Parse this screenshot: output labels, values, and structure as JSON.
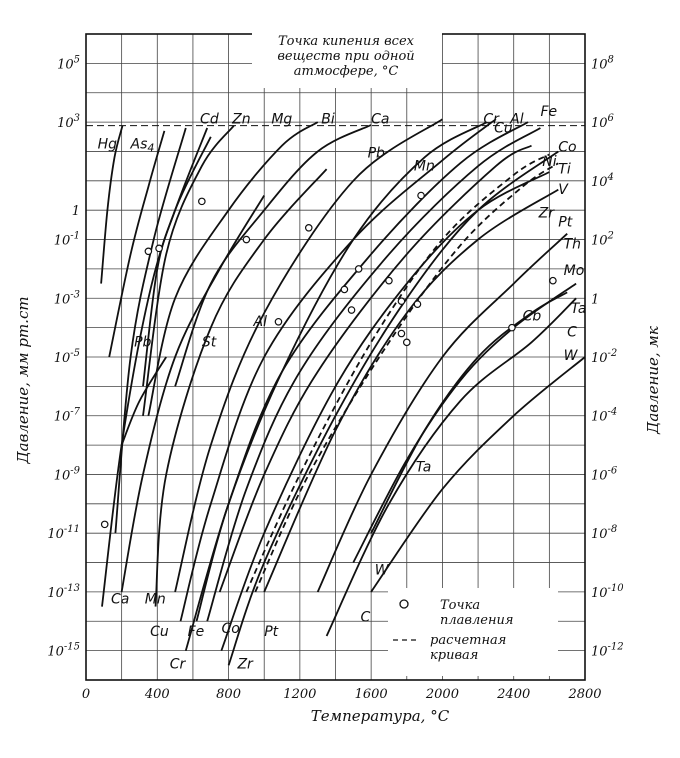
{
  "chart_data": {
    "type": "line",
    "xlabel": "Температура, °C",
    "ylabel_left": "Давление, мм рт.ст",
    "ylabel_right": "Давление, мк",
    "xlim": [
      0,
      2800
    ],
    "ylim_log10": [
      -16,
      6
    ],
    "xticks": [
      "0",
      "400",
      "800",
      "1200",
      "1600",
      "2000",
      "2400",
      "2800"
    ],
    "xtick_values": [
      0,
      400,
      800,
      1200,
      1600,
      2000,
      2400,
      2800
    ],
    "yticks_left": [
      {
        "exp": 5,
        "text": "10^5"
      },
      {
        "exp": 3,
        "text": "10^3"
      },
      {
        "exp": 0,
        "text": "1"
      },
      {
        "exp": -1,
        "text": "10^-1"
      },
      {
        "exp": -3,
        "text": "10^-3"
      },
      {
        "exp": -5,
        "text": "10^-5"
      },
      {
        "exp": -7,
        "text": "10^-7"
      },
      {
        "exp": -9,
        "text": "10^-9"
      },
      {
        "exp": -11,
        "text": "10^-11"
      },
      {
        "exp": -13,
        "text": "10^-13"
      },
      {
        "exp": -15,
        "text": "10^-15"
      }
    ],
    "yticks_right": [
      {
        "exp": 5,
        "text": "10^8"
      },
      {
        "exp": 3,
        "text": "10^6"
      },
      {
        "exp": 1,
        "text": "10^4"
      },
      {
        "exp": -1,
        "text": "10^2"
      },
      {
        "exp": -3,
        "text": "1"
      },
      {
        "exp": -5,
        "text": "10^-2"
      },
      {
        "exp": -7,
        "text": "10^-4"
      },
      {
        "exp": -9,
        "text": "10^-6"
      },
      {
        "exp": -11,
        "text": "10^-8"
      },
      {
        "exp": -13,
        "text": "10^-10"
      },
      {
        "exp": -15,
        "text": "10^-12"
      }
    ],
    "grid": true,
    "boiling_note": "Точка кипения всех веществ при одной атмосфере, °C",
    "boiling_line_log10": 2.88,
    "legend": [
      {
        "symbol": "circle",
        "label": "Точка плавления"
      },
      {
        "symbol": "dashed",
        "label": "расчетная кривая"
      }
    ],
    "series": [
      {
        "name": "Hg",
        "dashed": false,
        "x": [
          85,
          120,
          160,
          205
        ],
        "y": [
          -2.5,
          0,
          1.8,
          2.88
        ]
      },
      {
        "name": "As4",
        "dashed": false,
        "x": [
          130,
          250,
          350,
          440
        ],
        "y": [
          -5,
          -1.5,
          0.8,
          2.7
        ]
      },
      {
        "name": "Ca",
        "dashed": false,
        "x": [
          90,
          200,
          350,
          500,
          700
        ],
        "y": [
          -13.5,
          -8,
          -3,
          0,
          2.5
        ]
      },
      {
        "name": "Cd",
        "dashed": false,
        "x": [
          165,
          250,
          380,
          560
        ],
        "y": [
          -11,
          -5,
          -1,
          2.8
        ]
      },
      {
        "name": "Pb",
        "dashed": false,
        "x": [
          200,
          320,
          500,
          750,
          1000
        ],
        "y": [
          -13,
          -9,
          -5,
          -2,
          0.5
        ]
      },
      {
        "name": "St",
        "dashed": false,
        "x": [
          200,
          300,
          450
        ],
        "y": [
          -8,
          -6.5,
          -5
        ]
      },
      {
        "name": "Zn",
        "dashed": false,
        "x": [
          320,
          400,
          500,
          680
        ],
        "y": [
          -6,
          -2,
          0,
          2.8
        ]
      },
      {
        "name": "Mn",
        "dashed": false,
        "x": [
          390,
          450,
          700,
          1000,
          1350
        ],
        "y": [
          -13.5,
          -9,
          -4,
          -1,
          1.4
        ]
      },
      {
        "name": "Mg",
        "dashed": false,
        "x": [
          320,
          450,
          650,
          830
        ],
        "y": [
          -7,
          -1.5,
          1.5,
          2.88
        ]
      },
      {
        "name": "Cu",
        "dashed": false,
        "x": [
          530,
          700,
          1000,
          1500,
          2000,
          2300
        ],
        "y": [
          -14,
          -10,
          -5,
          -1,
          1.7,
          3.1
        ]
      },
      {
        "name": "Al",
        "dashed": false,
        "x": [
          500,
          700,
          1000,
          1500,
          2000
        ],
        "y": [
          -13,
          -8,
          -3.5,
          1,
          3.1
        ]
      },
      {
        "name": "Bi",
        "dashed": false,
        "x": [
          350,
          500,
          800,
          1100,
          1300
        ],
        "y": [
          -7,
          -3,
          0,
          2.2,
          3
        ]
      },
      {
        "name": "Ca",
        "dashed": false,
        "x": [
          500,
          700,
          1000,
          1300,
          1600
        ],
        "y": [
          -6,
          -2.5,
          0,
          2,
          2.9
        ]
      },
      {
        "name": "Fe",
        "dashed": false,
        "x": [
          620,
          800,
          1100,
          1600,
          2100,
          2480
        ],
        "y": [
          -14,
          -10,
          -5.5,
          -1.5,
          1.6,
          3
        ]
      },
      {
        "name": "Co",
        "dashed": false,
        "x": [
          680,
          900,
          1200,
          1700,
          2200,
          2550
        ],
        "y": [
          -14,
          -9.5,
          -5.5,
          -1.5,
          1.5,
          2.8
        ]
      },
      {
        "name": "Cr",
        "dashed": false,
        "x": [
          560,
          800,
          1100,
          1500,
          1900,
          2250
        ],
        "y": [
          -15,
          -10,
          -5.5,
          -1,
          1.8,
          3
        ]
      },
      {
        "name": "Ni",
        "dashed": false,
        "x": [
          750,
          1000,
          1300,
          1800,
          2300,
          2500
        ],
        "y": [
          -13,
          -9,
          -5.5,
          -1.5,
          1.5,
          2.2
        ]
      },
      {
        "name": "Pt",
        "dashed": false,
        "x": [
          760,
          1000,
          1400,
          1800,
          2200,
          2600
        ],
        "y": [
          -15,
          -11,
          -6,
          -2.5,
          0,
          1.3
        ]
      },
      {
        "name": "Zr",
        "dashed": false,
        "x": [
          800,
          1000,
          1400,
          1800,
          2200,
          2650
        ],
        "y": [
          -15.5,
          -12,
          -7,
          -3,
          0,
          2
        ]
      },
      {
        "name": "Ti",
        "dashed": true,
        "x": [
          900,
          1200,
          1600,
          2000,
          2400,
          2600
        ],
        "y": [
          -13,
          -9,
          -4.5,
          -1,
          1.2,
          1.9
        ]
      },
      {
        "name": "V",
        "dashed": true,
        "x": [
          950,
          1250,
          1700,
          2100,
          2450,
          2650
        ],
        "y": [
          -13,
          -9,
          -4.5,
          -1.2,
          0.8,
          1.6
        ]
      },
      {
        "name": "Th",
        "dashed": false,
        "x": [
          1000,
          1400,
          1800,
          2200,
          2650
        ],
        "y": [
          -13,
          -7.5,
          -3.5,
          -1,
          0.7
        ]
      },
      {
        "name": "Mo",
        "dashed": false,
        "x": [
          1300,
          1600,
          2000,
          2400,
          2700
        ],
        "y": [
          -13,
          -9,
          -5,
          -2.5,
          -0.8
        ]
      },
      {
        "name": "C",
        "dashed": false,
        "x": [
          1350,
          1700,
          2100,
          2500,
          2750
        ],
        "y": [
          -14.5,
          -10,
          -6.5,
          -4.5,
          -3
        ]
      },
      {
        "name": "Ta",
        "dashed": false,
        "x": [
          1500,
          1800,
          2100,
          2400,
          2750
        ],
        "y": [
          -12,
          -8.5,
          -5.8,
          -4,
          -2.5
        ]
      },
      {
        "name": "Cb",
        "dashed": false,
        "x": [
          1600,
          1900,
          2200,
          2500,
          2700
        ],
        "y": [
          -11,
          -7.5,
          -5,
          -3.5,
          -2.8
        ]
      },
      {
        "name": "W",
        "dashed": false,
        "x": [
          1600,
          2000,
          2400,
          2800
        ],
        "y": [
          -13,
          -9.5,
          -7,
          -5
        ]
      }
    ],
    "melting_points": [
      {
        "x": 105,
        "y": -10.7
      },
      {
        "x": 350,
        "y": -1.4
      },
      {
        "x": 410,
        "y": -1.3
      },
      {
        "x": 650,
        "y": 0.3
      },
      {
        "x": 900,
        "y": -1.0
      },
      {
        "x": 1080,
        "y": -3.8
      },
      {
        "x": 1250,
        "y": -0.6
      },
      {
        "x": 1450,
        "y": -2.7
      },
      {
        "x": 1490,
        "y": -3.4
      },
      {
        "x": 1530,
        "y": -2
      },
      {
        "x": 1700,
        "y": -2.4
      },
      {
        "x": 1770,
        "y": -3.1
      },
      {
        "x": 1770,
        "y": -4.2
      },
      {
        "x": 1800,
        "y": -4.5
      },
      {
        "x": 1860,
        "y": -3.2
      },
      {
        "x": 1880,
        "y": 0.5
      },
      {
        "x": 2390,
        "y": -4
      },
      {
        "x": 2620,
        "y": -2.4
      }
    ],
    "series_labels": [
      {
        "name": "Hg",
        "x": 65,
        "y": 2.1
      },
      {
        "name": "As4",
        "x": 250,
        "y": 2.1
      },
      {
        "name": "Cd",
        "x": 640,
        "y": 2.95
      },
      {
        "name": "Zn",
        "x": 820,
        "y": 2.95
      },
      {
        "name": "Mg",
        "x": 1040,
        "y": 2.95
      },
      {
        "name": "Bi",
        "x": 1320,
        "y": 2.95
      },
      {
        "name": "Ca",
        "x": 1600,
        "y": 2.95
      },
      {
        "name": "Cr",
        "x": 2230,
        "y": 2.95
      },
      {
        "name": "Al",
        "x": 2380,
        "y": 2.95
      },
      {
        "name": "Fe",
        "x": 2550,
        "y": 3.2
      },
      {
        "name": "Cu",
        "x": 2290,
        "y": 2.65
      },
      {
        "name": "Co",
        "x": 2650,
        "y": 2.0
      },
      {
        "name": "Pb",
        "x": 1580,
        "y": 1.8
      },
      {
        "name": "Mn",
        "x": 1840,
        "y": 1.35
      },
      {
        "name": "Ni",
        "x": 2560,
        "y": 1.5
      },
      {
        "name": "Ti",
        "x": 2650,
        "y": 1.25
      },
      {
        "name": "V",
        "x": 2650,
        "y": 0.55
      },
      {
        "name": "Zr",
        "x": 2540,
        "y": -0.25
      },
      {
        "name": "Pt",
        "x": 2650,
        "y": -0.55
      },
      {
        "name": "Th",
        "x": 2680,
        "y": -1.3
      },
      {
        "name": "Mo",
        "x": 2680,
        "y": -2.2
      },
      {
        "name": "Ta",
        "x": 2720,
        "y": -3.5
      },
      {
        "name": "C",
        "x": 2700,
        "y": -4.3
      },
      {
        "name": "W",
        "x": 2680,
        "y": -5.1
      },
      {
        "name": "Cb",
        "x": 2450,
        "y": -3.75
      },
      {
        "name": "Al",
        "x": 940,
        "y": -3.95
      },
      {
        "name": "Pb",
        "x": 270,
        "y": -4.65
      },
      {
        "name": "St",
        "x": 650,
        "y": -4.65
      },
      {
        "name": "Ta",
        "x": 1850,
        "y": -8.9
      },
      {
        "name": "W",
        "x": 1620,
        "y": -12.4
      },
      {
        "name": "C",
        "x": 1540,
        "y": -14
      },
      {
        "name": "Ca",
        "x": 140,
        "y": -13.4
      },
      {
        "name": "Mn",
        "x": 330,
        "y": -13.4
      },
      {
        "name": "Cu",
        "x": 360,
        "y": -14.5
      },
      {
        "name": "Fe",
        "x": 570,
        "y": -14.5
      },
      {
        "name": "Co",
        "x": 760,
        "y": -14.4
      },
      {
        "name": "Pt",
        "x": 1000,
        "y": -14.5
      },
      {
        "name": "Cr",
        "x": 470,
        "y": -15.6
      },
      {
        "name": "Zr",
        "x": 850,
        "y": -15.6
      }
    ]
  }
}
